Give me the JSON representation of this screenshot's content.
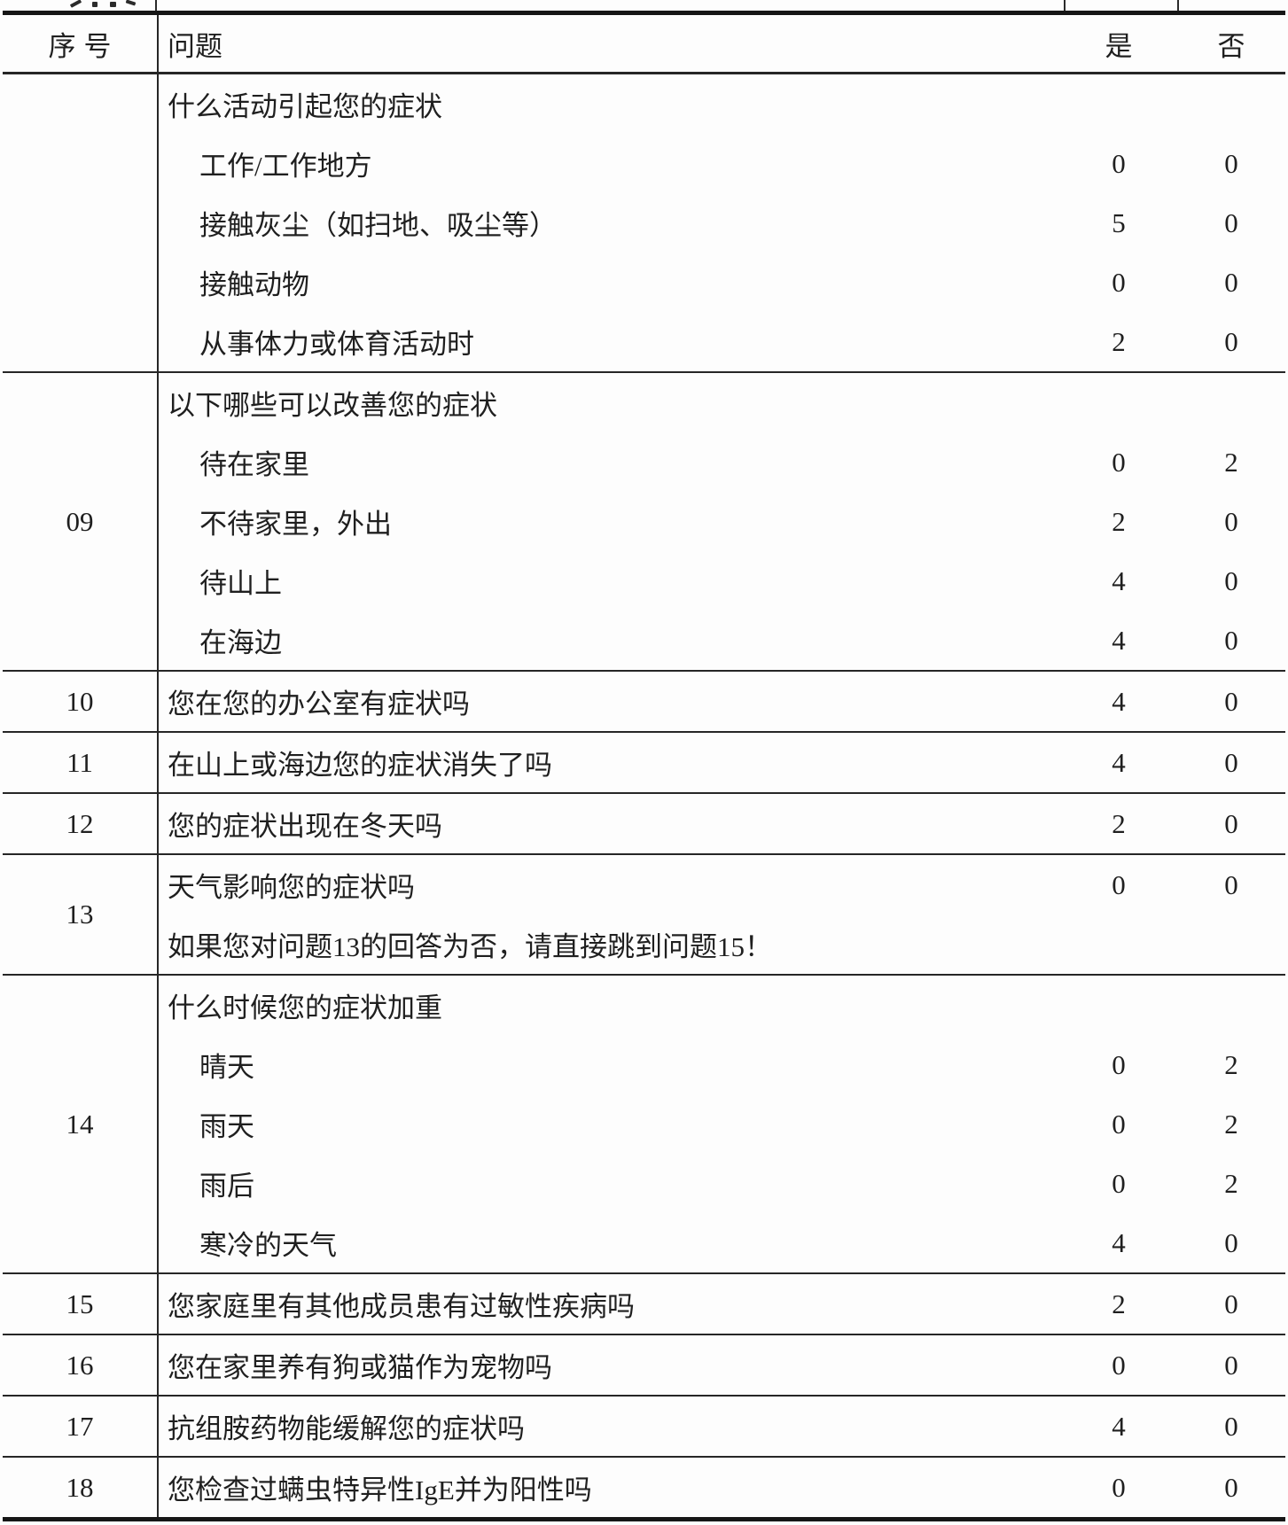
{
  "colors": {
    "background": "#fdfdfd",
    "text": "#1f1f1f",
    "rule": "#262626"
  },
  "table": {
    "header": {
      "num": "序号",
      "question": "问题",
      "yes": "是",
      "no": "否"
    },
    "rows": [
      {
        "num": "",
        "lines": [
          {
            "text": "什么活动引起您的症状",
            "indent": false,
            "yes": "",
            "no": ""
          },
          {
            "text": "工作/工作地方",
            "indent": true,
            "yes": "0",
            "no": "0"
          },
          {
            "text": "接触灰尘（如扫地、吸尘等）",
            "indent": true,
            "yes": "5",
            "no": "0"
          },
          {
            "text": "接触动物",
            "indent": true,
            "yes": "0",
            "no": "0"
          },
          {
            "text": "从事体力或体育活动时",
            "indent": true,
            "yes": "2",
            "no": "0"
          }
        ]
      },
      {
        "num": "09",
        "lines": [
          {
            "text": "以下哪些可以改善您的症状",
            "indent": false,
            "yes": "",
            "no": ""
          },
          {
            "text": "待在家里",
            "indent": true,
            "yes": "0",
            "no": "2"
          },
          {
            "text": "不待家里，外出",
            "indent": true,
            "yes": "2",
            "no": "0"
          },
          {
            "text": "待山上",
            "indent": true,
            "yes": "4",
            "no": "0"
          },
          {
            "text": "在海边",
            "indent": true,
            "yes": "4",
            "no": "0"
          }
        ]
      },
      {
        "num": "10",
        "lines": [
          {
            "text": "您在您的办公室有症状吗",
            "indent": false,
            "yes": "4",
            "no": "0"
          }
        ]
      },
      {
        "num": "11",
        "lines": [
          {
            "text": "在山上或海边您的症状消失了吗",
            "indent": false,
            "yes": "4",
            "no": "0"
          }
        ]
      },
      {
        "num": "12",
        "lines": [
          {
            "text": "您的症状出现在冬天吗",
            "indent": false,
            "yes": "2",
            "no": "0"
          }
        ]
      },
      {
        "num": "13",
        "lines": [
          {
            "text": "天气影响您的症状吗",
            "indent": false,
            "yes": "0",
            "no": "0"
          },
          {
            "text": "如果您对问题13的回答为否，请直接跳到问题15！",
            "indent": false,
            "yes": "",
            "no": ""
          }
        ]
      },
      {
        "num": "14",
        "lines": [
          {
            "text": "什么时候您的症状加重",
            "indent": false,
            "yes": "",
            "no": ""
          },
          {
            "text": "晴天",
            "indent": true,
            "yes": "0",
            "no": "2"
          },
          {
            "text": "雨天",
            "indent": true,
            "yes": "0",
            "no": "2"
          },
          {
            "text": "雨后",
            "indent": true,
            "yes": "0",
            "no": "2"
          },
          {
            "text": "寒冷的天气",
            "indent": true,
            "yes": "4",
            "no": "0"
          }
        ]
      },
      {
        "num": "15",
        "lines": [
          {
            "text": "您家庭里有其他成员患有过敏性疾病吗",
            "indent": false,
            "yes": "2",
            "no": "0"
          }
        ]
      },
      {
        "num": "16",
        "lines": [
          {
            "text": "您在家里养有狗或猫作为宠物吗",
            "indent": false,
            "yes": "0",
            "no": "0"
          }
        ]
      },
      {
        "num": "17",
        "lines": [
          {
            "text": "抗组胺药物能缓解您的症状吗",
            "indent": false,
            "yes": "4",
            "no": "0"
          }
        ]
      },
      {
        "num": "18",
        "lines": [
          {
            "text": "您检查过螨虫特异性IgE并为阳性吗",
            "indent": false,
            "yes": "0",
            "no": "0"
          }
        ]
      }
    ]
  }
}
